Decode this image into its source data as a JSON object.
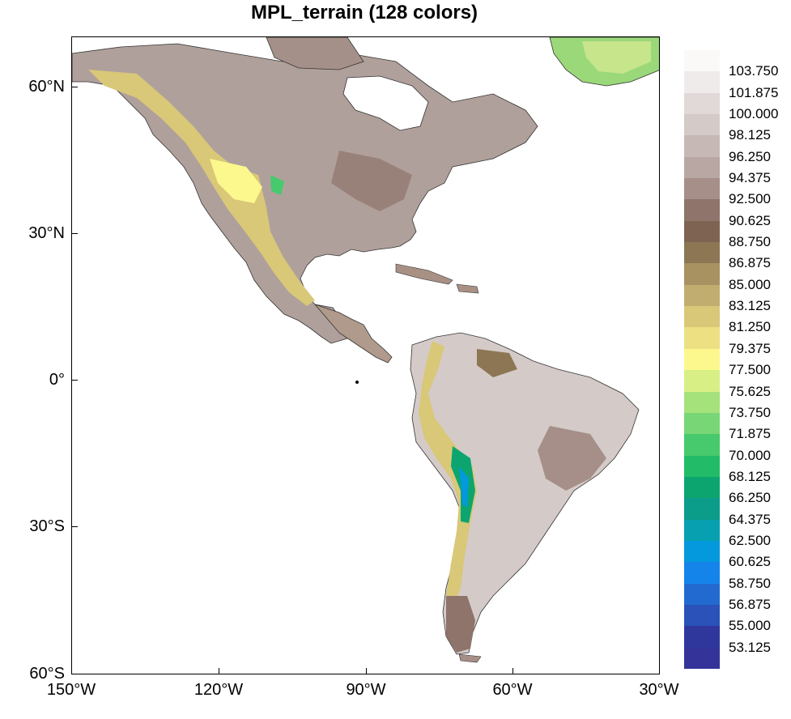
{
  "title": "MPL_terrain (128 colors)",
  "map": {
    "lat_labels": [
      "60°N",
      "30°N",
      "0°",
      "30°S",
      "60°S"
    ],
    "lon_labels": [
      "150°W",
      "120°W",
      "90°W",
      "60°W",
      "30°W"
    ]
  },
  "colorbar": {
    "labels": [
      "103.750",
      "101.875",
      "100.000",
      "98.125",
      "96.250",
      "94.375",
      "92.500",
      "90.625",
      "88.750",
      "86.875",
      "85.000",
      "83.125",
      "81.250",
      "79.375",
      "77.500",
      "75.625",
      "73.750",
      "71.875",
      "70.000",
      "68.125",
      "66.250",
      "64.375",
      "62.500",
      "60.625",
      "58.750",
      "56.875",
      "55.000",
      "53.125"
    ],
    "colors": [
      "#fbf9f8",
      "#eeebea",
      "#e0d9d7",
      "#d4cbc8",
      "#c6b9b5",
      "#b8a7a2",
      "#a68f88",
      "#8e746b",
      "#7e6353",
      "#8c7654",
      "#a89262",
      "#c1ad6f",
      "#d8c878",
      "#ece083",
      "#fcf88d",
      "#d7ef85",
      "#a6e27c",
      "#78d676",
      "#47c96d",
      "#22bb68",
      "#0ca56f",
      "#0b9c8a",
      "#06a0b0",
      "#0498dc",
      "#1484ea",
      "#226ad0",
      "#2a52b8",
      "#30379c"
    ],
    "end_color": "#333399"
  }
}
